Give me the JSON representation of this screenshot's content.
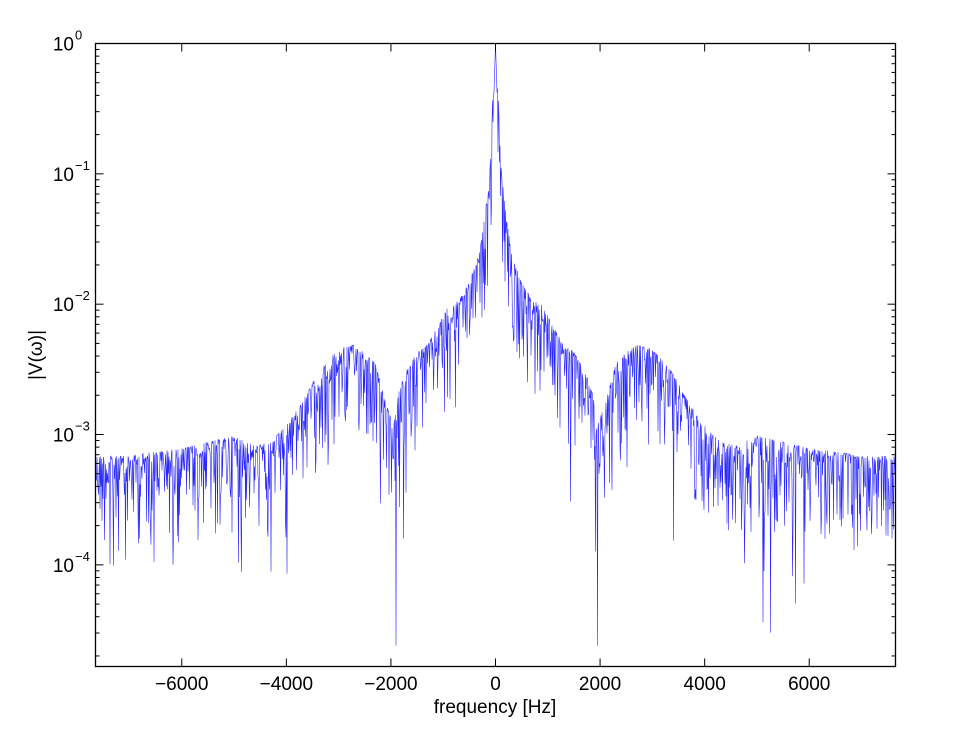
{
  "chart_data": {
    "type": "line",
    "title": "",
    "xlabel": "frequency [Hz]",
    "ylabel": "|V(ω)|",
    "xscale": "linear",
    "yscale": "log",
    "xlim": [
      -7650,
      7650
    ],
    "ylim": [
      1.66e-05,
      1.0
    ],
    "grid": false,
    "legend": null,
    "line_color": "#0000ff",
    "xticks": [
      -6000,
      -4000,
      -2000,
      0,
      2000,
      4000,
      6000
    ],
    "xtick_labels": [
      "−6000",
      "−4000",
      "−2000",
      "0",
      "2000",
      "4000",
      "6000"
    ],
    "yticks": [
      0.0001,
      0.001,
      0.01,
      0.1,
      1
    ],
    "ytick_labels": [
      {
        "base": "10",
        "exp": "−4"
      },
      {
        "base": "10",
        "exp": "−3"
      },
      {
        "base": "10",
        "exp": "−2"
      },
      {
        "base": "10",
        "exp": "−1"
      },
      {
        "base": "10",
        "exp": "0"
      }
    ],
    "symmetric": true,
    "envelope_positive_freq": {
      "description": "approximate median magnitude of the symmetric spectrum vs |frequency| (read from plot)",
      "x": [
        0,
        40,
        100,
        200,
        300,
        500,
        700,
        900,
        1100,
        1300,
        1500,
        1700,
        1850,
        1950,
        2100,
        2300,
        2500,
        2700,
        2900,
        3100,
        3400,
        3700,
        4000,
        4300,
        4600,
        5000,
        5500,
        6000,
        6500,
        7000,
        7650
      ],
      "y": [
        1.0,
        0.3,
        0.06,
        0.025,
        0.013,
        0.0075,
        0.0055,
        0.005,
        0.0035,
        0.0025,
        0.0022,
        0.0016,
        0.0011,
        0.0006,
        0.0009,
        0.0018,
        0.0022,
        0.0025,
        0.0024,
        0.0021,
        0.0015,
        0.0009,
        0.0006,
        0.00045,
        0.00042,
        0.0005,
        0.00045,
        0.0004,
        0.00038,
        0.00035,
        0.00035
      ]
    },
    "notable_features": [
      {
        "x": 0,
        "y": 1.0,
        "label": "carrier peak"
      },
      {
        "x": -2750,
        "y": 0.0035,
        "label": "sideband hump"
      },
      {
        "x": 2750,
        "y": 0.0035,
        "label": "sideband hump"
      },
      {
        "x": -1900,
        "y": 2.4e-05,
        "label": "deep null"
      },
      {
        "x": 1950,
        "y": 2.4e-05,
        "label": "deep null"
      }
    ]
  }
}
